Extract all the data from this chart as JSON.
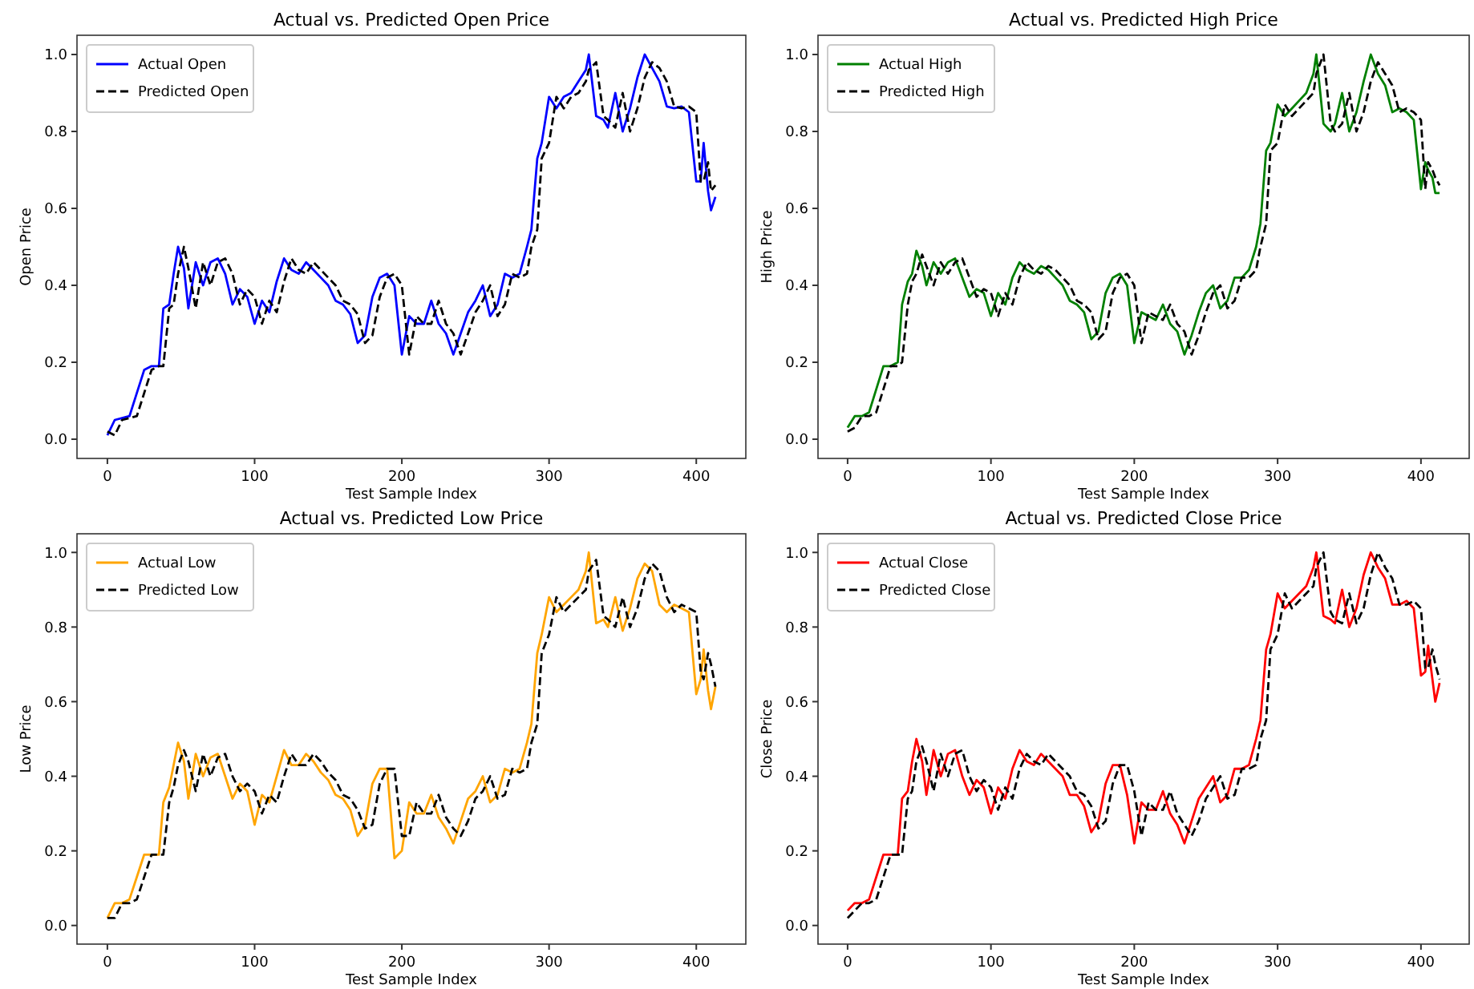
{
  "chart_data": [
    {
      "type": "line",
      "title": "Actual vs. Predicted Open Price",
      "xlabel": "Test Sample Index",
      "ylabel": "Open Price",
      "legend": "top left",
      "grid": false,
      "xlim": [
        -20.65,
        433.65
      ],
      "ylim": [
        -0.05,
        1.05
      ],
      "xticks": [
        0,
        100,
        200,
        300,
        400
      ],
      "yticks": [
        {
          "value": 0,
          "label": "0.0"
        },
        {
          "value": 0.2,
          "label": "0.2"
        },
        {
          "value": 0.4,
          "label": "0.4"
        },
        {
          "value": 0.6,
          "label": "0.6"
        },
        {
          "value": 0.8,
          "label": "0.8"
        },
        {
          "value": 1,
          "label": "1.0"
        }
      ],
      "x": [
        0,
        5,
        10,
        15,
        20,
        25,
        30,
        35,
        38,
        42,
        45,
        48,
        52,
        55,
        60,
        65,
        70,
        75,
        80,
        85,
        90,
        95,
        100,
        105,
        110,
        115,
        120,
        125,
        130,
        135,
        140,
        145,
        150,
        155,
        160,
        165,
        170,
        175,
        180,
        185,
        190,
        195,
        200,
        205,
        210,
        215,
        220,
        225,
        230,
        235,
        240,
        245,
        250,
        255,
        260,
        265,
        270,
        275,
        280,
        285,
        288,
        292,
        295,
        300,
        305,
        310,
        315,
        320,
        325,
        327,
        332,
        337,
        340,
        345,
        350,
        355,
        360,
        365,
        370,
        375,
        380,
        385,
        390,
        395,
        400,
        403,
        405,
        408,
        410,
        413
      ],
      "series": [
        {
          "name": "Actual Open",
          "color": "#0000ff",
          "line_style": "solid",
          "values": [
            0.01,
            0.05,
            0.055,
            0.06,
            0.12,
            0.18,
            0.19,
            0.19,
            0.34,
            0.35,
            0.43,
            0.5,
            0.445,
            0.34,
            0.46,
            0.4,
            0.46,
            0.47,
            0.43,
            0.35,
            0.39,
            0.37,
            0.3,
            0.36,
            0.33,
            0.41,
            0.47,
            0.44,
            0.43,
            0.46,
            0.44,
            0.42,
            0.4,
            0.36,
            0.35,
            0.325,
            0.25,
            0.27,
            0.37,
            0.42,
            0.43,
            0.4,
            0.22,
            0.32,
            0.3,
            0.3,
            0.36,
            0.3,
            0.275,
            0.22,
            0.275,
            0.33,
            0.36,
            0.4,
            0.32,
            0.35,
            0.43,
            0.42,
            0.43,
            0.5,
            0.545,
            0.73,
            0.77,
            0.89,
            0.86,
            0.89,
            0.9,
            0.93,
            0.96,
            1.0,
            0.84,
            0.83,
            0.81,
            0.9,
            0.8,
            0.86,
            0.94,
            1.0,
            0.965,
            0.93,
            0.865,
            0.86,
            0.865,
            0.85,
            0.67,
            0.67,
            0.77,
            0.645,
            0.595,
            0.63
          ]
        },
        {
          "name": "Predicted Open",
          "color": "#000000",
          "line_style": "dashed",
          "values": [
            0.02,
            0.01,
            0.05,
            0.055,
            0.06,
            0.12,
            0.18,
            0.19,
            0.19,
            0.34,
            0.35,
            0.43,
            0.5,
            0.445,
            0.34,
            0.46,
            0.4,
            0.46,
            0.47,
            0.43,
            0.35,
            0.39,
            0.37,
            0.3,
            0.36,
            0.33,
            0.41,
            0.47,
            0.44,
            0.43,
            0.46,
            0.44,
            0.42,
            0.4,
            0.36,
            0.35,
            0.325,
            0.25,
            0.27,
            0.37,
            0.42,
            0.43,
            0.4,
            0.22,
            0.32,
            0.3,
            0.3,
            0.36,
            0.3,
            0.275,
            0.22,
            0.275,
            0.33,
            0.36,
            0.4,
            0.32,
            0.35,
            0.43,
            0.42,
            0.43,
            0.5,
            0.545,
            0.73,
            0.77,
            0.89,
            0.86,
            0.89,
            0.9,
            0.93,
            0.96,
            0.98,
            0.84,
            0.83,
            0.81,
            0.9,
            0.8,
            0.86,
            0.94,
            0.98,
            0.965,
            0.93,
            0.865,
            0.86,
            0.865,
            0.85,
            0.67,
            0.67,
            0.72,
            0.645,
            0.66
          ]
        }
      ]
    },
    {
      "type": "line",
      "title": "Actual vs. Predicted High Price",
      "xlabel": "Test Sample Index",
      "ylabel": "High Price",
      "legend": "top left",
      "grid": false,
      "xlim": [
        -20.65,
        433.65
      ],
      "ylim": [
        -0.05,
        1.05
      ],
      "xticks": [
        0,
        100,
        200,
        300,
        400
      ],
      "yticks": [
        {
          "value": 0,
          "label": "0.0"
        },
        {
          "value": 0.2,
          "label": "0.2"
        },
        {
          "value": 0.4,
          "label": "0.4"
        },
        {
          "value": 0.6,
          "label": "0.6"
        },
        {
          "value": 0.8,
          "label": "0.8"
        },
        {
          "value": 1,
          "label": "1.0"
        }
      ],
      "x": [
        0,
        5,
        10,
        15,
        20,
        25,
        30,
        35,
        38,
        42,
        45,
        48,
        52,
        55,
        60,
        65,
        70,
        75,
        80,
        85,
        90,
        95,
        100,
        105,
        110,
        115,
        120,
        125,
        130,
        135,
        140,
        145,
        150,
        155,
        160,
        165,
        170,
        175,
        180,
        185,
        190,
        195,
        200,
        205,
        210,
        215,
        220,
        225,
        230,
        235,
        240,
        245,
        250,
        255,
        260,
        265,
        270,
        275,
        280,
        285,
        288,
        292,
        295,
        300,
        305,
        310,
        315,
        320,
        325,
        327,
        332,
        337,
        340,
        345,
        350,
        355,
        360,
        365,
        370,
        375,
        380,
        385,
        390,
        395,
        400,
        403,
        405,
        408,
        410,
        413
      ],
      "series": [
        {
          "name": "Actual High",
          "color": "#008000",
          "line_style": "solid",
          "values": [
            0.03,
            0.06,
            0.06,
            0.07,
            0.13,
            0.19,
            0.19,
            0.2,
            0.35,
            0.41,
            0.43,
            0.49,
            0.45,
            0.4,
            0.46,
            0.43,
            0.46,
            0.47,
            0.42,
            0.37,
            0.39,
            0.38,
            0.32,
            0.38,
            0.35,
            0.42,
            0.46,
            0.44,
            0.43,
            0.45,
            0.44,
            0.42,
            0.4,
            0.36,
            0.35,
            0.33,
            0.26,
            0.28,
            0.38,
            0.42,
            0.43,
            0.4,
            0.25,
            0.33,
            0.32,
            0.31,
            0.35,
            0.3,
            0.28,
            0.22,
            0.27,
            0.33,
            0.38,
            0.4,
            0.34,
            0.36,
            0.42,
            0.42,
            0.44,
            0.5,
            0.56,
            0.75,
            0.77,
            0.87,
            0.84,
            0.86,
            0.88,
            0.9,
            0.95,
            1.0,
            0.82,
            0.8,
            0.82,
            0.9,
            0.8,
            0.85,
            0.93,
            1.0,
            0.95,
            0.92,
            0.85,
            0.86,
            0.85,
            0.83,
            0.65,
            0.72,
            0.7,
            0.68,
            0.64,
            0.64
          ]
        },
        {
          "name": "Predicted High",
          "color": "#000000",
          "line_style": "dashed",
          "values": [
            0.02,
            0.03,
            0.06,
            0.06,
            0.07,
            0.13,
            0.19,
            0.19,
            0.2,
            0.35,
            0.41,
            0.43,
            0.48,
            0.45,
            0.4,
            0.46,
            0.43,
            0.46,
            0.47,
            0.42,
            0.37,
            0.39,
            0.38,
            0.32,
            0.38,
            0.35,
            0.42,
            0.46,
            0.44,
            0.43,
            0.45,
            0.44,
            0.42,
            0.4,
            0.36,
            0.35,
            0.33,
            0.26,
            0.28,
            0.38,
            0.42,
            0.43,
            0.4,
            0.25,
            0.33,
            0.32,
            0.31,
            0.35,
            0.3,
            0.28,
            0.22,
            0.27,
            0.33,
            0.38,
            0.4,
            0.34,
            0.36,
            0.42,
            0.42,
            0.44,
            0.5,
            0.56,
            0.75,
            0.77,
            0.87,
            0.84,
            0.86,
            0.88,
            0.9,
            0.95,
            1.0,
            0.82,
            0.8,
            0.82,
            0.9,
            0.8,
            0.85,
            0.93,
            0.98,
            0.95,
            0.92,
            0.85,
            0.86,
            0.85,
            0.83,
            0.65,
            0.72,
            0.7,
            0.68,
            0.66
          ]
        }
      ]
    },
    {
      "type": "line",
      "title": "Actual vs. Predicted Low Price",
      "xlabel": "Test Sample Index",
      "ylabel": "Low Price",
      "legend": "top left",
      "grid": false,
      "xlim": [
        -20.65,
        433.65
      ],
      "ylim": [
        -0.05,
        1.05
      ],
      "xticks": [
        0,
        100,
        200,
        300,
        400
      ],
      "yticks": [
        {
          "value": 0,
          "label": "0.0"
        },
        {
          "value": 0.2,
          "label": "0.2"
        },
        {
          "value": 0.4,
          "label": "0.4"
        },
        {
          "value": 0.6,
          "label": "0.6"
        },
        {
          "value": 0.8,
          "label": "0.8"
        },
        {
          "value": 1,
          "label": "1.0"
        }
      ],
      "x": [
        0,
        5,
        10,
        15,
        20,
        25,
        30,
        35,
        38,
        42,
        45,
        48,
        52,
        55,
        60,
        65,
        70,
        75,
        80,
        85,
        90,
        95,
        100,
        105,
        110,
        115,
        120,
        125,
        130,
        135,
        140,
        145,
        150,
        155,
        160,
        165,
        170,
        175,
        180,
        185,
        190,
        195,
        200,
        205,
        210,
        215,
        220,
        225,
        230,
        235,
        240,
        245,
        250,
        255,
        260,
        265,
        270,
        275,
        280,
        285,
        288,
        292,
        295,
        300,
        305,
        310,
        315,
        320,
        325,
        327,
        332,
        337,
        340,
        345,
        350,
        355,
        360,
        365,
        370,
        375,
        380,
        385,
        390,
        395,
        400,
        403,
        405,
        408,
        410,
        413
      ],
      "series": [
        {
          "name": "Actual Low",
          "color": "#ffa500",
          "line_style": "solid",
          "values": [
            0.02,
            0.06,
            0.06,
            0.07,
            0.13,
            0.19,
            0.19,
            0.19,
            0.33,
            0.37,
            0.43,
            0.49,
            0.44,
            0.34,
            0.46,
            0.4,
            0.45,
            0.46,
            0.4,
            0.34,
            0.38,
            0.36,
            0.27,
            0.35,
            0.33,
            0.4,
            0.47,
            0.43,
            0.43,
            0.46,
            0.44,
            0.41,
            0.39,
            0.35,
            0.34,
            0.31,
            0.24,
            0.27,
            0.38,
            0.42,
            0.42,
            0.18,
            0.2,
            0.33,
            0.3,
            0.3,
            0.35,
            0.29,
            0.26,
            0.22,
            0.28,
            0.34,
            0.36,
            0.4,
            0.33,
            0.35,
            0.42,
            0.41,
            0.42,
            0.49,
            0.54,
            0.73,
            0.78,
            0.88,
            0.84,
            0.86,
            0.88,
            0.9,
            0.95,
            1.0,
            0.81,
            0.82,
            0.8,
            0.88,
            0.79,
            0.85,
            0.93,
            0.97,
            0.95,
            0.86,
            0.84,
            0.86,
            0.85,
            0.84,
            0.62,
            0.66,
            0.74,
            0.63,
            0.58,
            0.64
          ]
        },
        {
          "name": "Predicted Low",
          "color": "#000000",
          "line_style": "dashed",
          "values": [
            0.02,
            0.02,
            0.06,
            0.06,
            0.07,
            0.13,
            0.19,
            0.19,
            0.19,
            0.33,
            0.37,
            0.43,
            0.47,
            0.44,
            0.36,
            0.46,
            0.4,
            0.45,
            0.46,
            0.4,
            0.36,
            0.38,
            0.36,
            0.3,
            0.35,
            0.33,
            0.4,
            0.46,
            0.43,
            0.43,
            0.46,
            0.44,
            0.41,
            0.39,
            0.35,
            0.34,
            0.31,
            0.26,
            0.27,
            0.38,
            0.42,
            0.42,
            0.24,
            0.24,
            0.33,
            0.3,
            0.3,
            0.35,
            0.29,
            0.26,
            0.24,
            0.28,
            0.34,
            0.36,
            0.4,
            0.34,
            0.35,
            0.42,
            0.41,
            0.42,
            0.49,
            0.54,
            0.73,
            0.78,
            0.88,
            0.84,
            0.86,
            0.88,
            0.9,
            0.95,
            0.98,
            0.83,
            0.82,
            0.8,
            0.88,
            0.8,
            0.85,
            0.93,
            0.97,
            0.95,
            0.88,
            0.84,
            0.86,
            0.85,
            0.84,
            0.68,
            0.66,
            0.73,
            0.7,
            0.64
          ]
        }
      ]
    },
    {
      "type": "line",
      "title": "Actual vs. Predicted Close Price",
      "xlabel": "Test Sample Index",
      "ylabel": "Close Price",
      "legend": "top left",
      "grid": false,
      "xlim": [
        -20.65,
        433.65
      ],
      "ylim": [
        -0.05,
        1.05
      ],
      "xticks": [
        0,
        100,
        200,
        300,
        400
      ],
      "yticks": [
        {
          "value": 0,
          "label": "0.0"
        },
        {
          "value": 0.2,
          "label": "0.2"
        },
        {
          "value": 0.4,
          "label": "0.4"
        },
        {
          "value": 0.6,
          "label": "0.6"
        },
        {
          "value": 0.8,
          "label": "0.8"
        },
        {
          "value": 1,
          "label": "1.0"
        }
      ],
      "x": [
        0,
        5,
        10,
        15,
        20,
        25,
        30,
        35,
        38,
        42,
        45,
        48,
        52,
        55,
        60,
        65,
        70,
        75,
        80,
        85,
        90,
        95,
        100,
        105,
        110,
        115,
        120,
        125,
        130,
        135,
        140,
        145,
        150,
        155,
        160,
        165,
        170,
        175,
        180,
        185,
        190,
        195,
        200,
        205,
        210,
        215,
        220,
        225,
        230,
        235,
        240,
        245,
        250,
        255,
        260,
        265,
        270,
        275,
        280,
        285,
        288,
        292,
        295,
        300,
        305,
        310,
        315,
        320,
        325,
        327,
        332,
        337,
        340,
        345,
        350,
        355,
        360,
        365,
        370,
        375,
        380,
        385,
        390,
        395,
        400,
        403,
        405,
        408,
        410,
        413
      ],
      "series": [
        {
          "name": "Actual Close",
          "color": "#ff0000",
          "line_style": "solid",
          "values": [
            0.04,
            0.06,
            0.06,
            0.07,
            0.13,
            0.19,
            0.19,
            0.19,
            0.34,
            0.36,
            0.44,
            0.5,
            0.44,
            0.35,
            0.47,
            0.4,
            0.46,
            0.47,
            0.4,
            0.35,
            0.39,
            0.37,
            0.3,
            0.37,
            0.34,
            0.42,
            0.47,
            0.44,
            0.43,
            0.46,
            0.44,
            0.42,
            0.4,
            0.35,
            0.35,
            0.32,
            0.25,
            0.28,
            0.38,
            0.43,
            0.43,
            0.35,
            0.22,
            0.33,
            0.31,
            0.31,
            0.36,
            0.3,
            0.27,
            0.22,
            0.28,
            0.34,
            0.37,
            0.4,
            0.33,
            0.35,
            0.42,
            0.42,
            0.43,
            0.5,
            0.55,
            0.74,
            0.78,
            0.89,
            0.85,
            0.87,
            0.89,
            0.91,
            0.96,
            1.0,
            0.83,
            0.82,
            0.81,
            0.9,
            0.8,
            0.85,
            0.94,
            1.0,
            0.96,
            0.93,
            0.86,
            0.86,
            0.87,
            0.85,
            0.67,
            0.68,
            0.75,
            0.66,
            0.6,
            0.65
          ]
        },
        {
          "name": "Predicted Close",
          "color": "#000000",
          "line_style": "dashed",
          "values": [
            0.02,
            0.04,
            0.06,
            0.06,
            0.07,
            0.13,
            0.19,
            0.19,
            0.19,
            0.34,
            0.36,
            0.44,
            0.48,
            0.44,
            0.36,
            0.46,
            0.4,
            0.46,
            0.47,
            0.4,
            0.36,
            0.39,
            0.37,
            0.31,
            0.37,
            0.34,
            0.42,
            0.46,
            0.44,
            0.43,
            0.46,
            0.44,
            0.42,
            0.4,
            0.36,
            0.35,
            0.32,
            0.26,
            0.28,
            0.38,
            0.43,
            0.43,
            0.36,
            0.24,
            0.33,
            0.31,
            0.31,
            0.36,
            0.3,
            0.27,
            0.24,
            0.28,
            0.34,
            0.37,
            0.4,
            0.34,
            0.35,
            0.42,
            0.42,
            0.43,
            0.5,
            0.55,
            0.74,
            0.78,
            0.89,
            0.85,
            0.87,
            0.89,
            0.91,
            0.96,
            1.0,
            0.84,
            0.82,
            0.81,
            0.89,
            0.81,
            0.85,
            0.94,
            1.0,
            0.96,
            0.93,
            0.86,
            0.86,
            0.87,
            0.85,
            0.69,
            0.69,
            0.74,
            0.7,
            0.66
          ]
        }
      ]
    }
  ]
}
